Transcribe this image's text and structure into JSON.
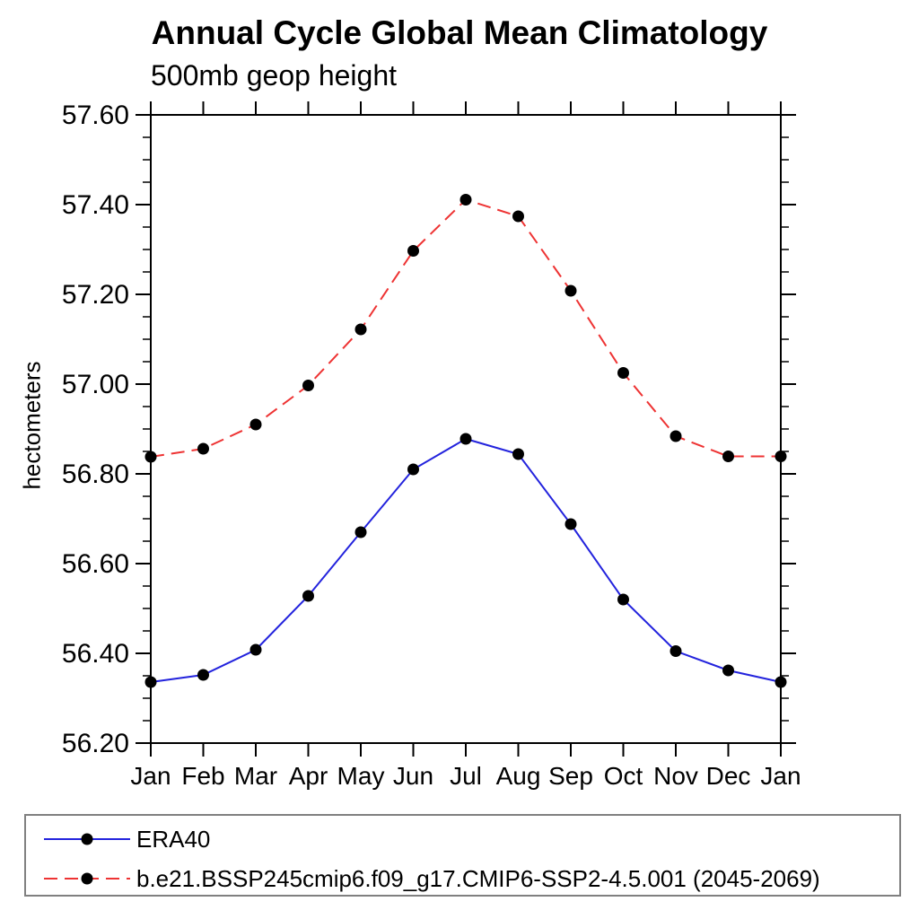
{
  "title": "Annual Cycle Global Mean Climatology",
  "subtitle": "500mb geop height",
  "ylabel": "hectometers",
  "chart_data": {
    "type": "line",
    "title": "Annual Cycle Global Mean Climatology",
    "subtitle": "500mb geop height",
    "xlabel": "",
    "ylabel": "hectometers",
    "categories": [
      "Jan",
      "Feb",
      "Mar",
      "Apr",
      "May",
      "Jun",
      "Jul",
      "Aug",
      "Sep",
      "Oct",
      "Nov",
      "Dec",
      "Jan"
    ],
    "ylim": [
      56.2,
      57.6
    ],
    "y_tick_step": 0.2,
    "y_minor_step": 0.05,
    "y_tick_labels": [
      "56.20",
      "56.40",
      "56.60",
      "56.80",
      "57.00",
      "57.20",
      "57.40",
      "57.60"
    ],
    "grid": false,
    "legend_position": "bottom-left-box",
    "frame_color": "#000000",
    "legend_border_color": "#808080",
    "series": [
      {
        "name": "ERA40",
        "color": "#2323dd",
        "style": "solid",
        "marker": "circle",
        "marker_color": "#000000",
        "values": [
          56.336,
          56.352,
          56.408,
          56.528,
          56.67,
          56.81,
          56.878,
          56.844,
          56.688,
          56.52,
          56.405,
          56.362,
          56.336
        ]
      },
      {
        "name": "b.e21.BSSP245cmip6.f09_g17.CMIP6-SSP2-4.5.001 (2045-2069)",
        "color": "#ee3333",
        "style": "dashed",
        "marker": "circle",
        "marker_color": "#000000",
        "values": [
          56.838,
          56.856,
          56.91,
          56.997,
          57.122,
          57.297,
          57.411,
          57.374,
          57.208,
          57.025,
          56.884,
          56.839,
          56.839
        ]
      }
    ]
  }
}
